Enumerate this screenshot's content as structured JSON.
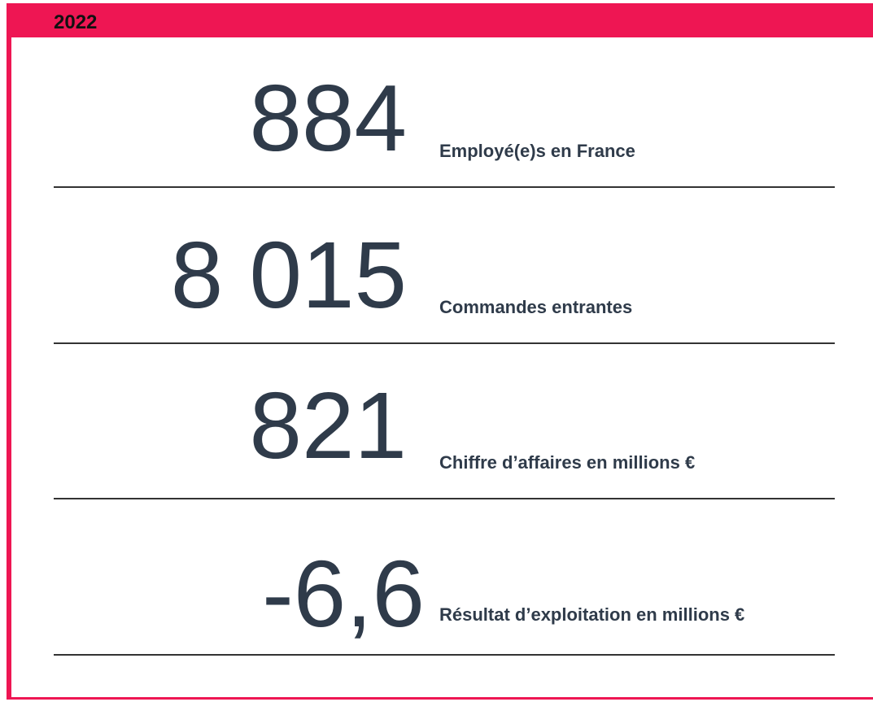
{
  "header": {
    "title": "2022"
  },
  "items": [
    {
      "value": "884",
      "label": "Employé(e)s en France"
    },
    {
      "value": "8 015",
      "label": "Commandes entrantes"
    },
    {
      "value": "821",
      "label": "Chiffre d’affaires en millions €"
    },
    {
      "value": "-6,6",
      "label": "Résultat d’exploitation en millions €"
    }
  ]
}
